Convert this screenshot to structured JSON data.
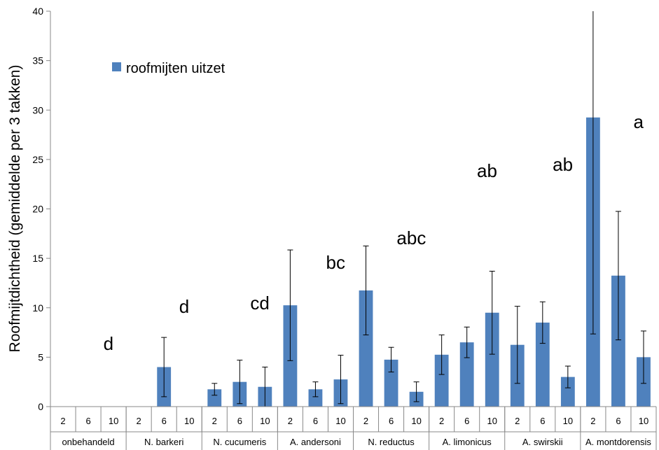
{
  "chart_data": {
    "type": "bar",
    "ylabel": "Roofmijtdichtheid (gemiddelde per 3 takken)",
    "ylim": [
      0,
      40
    ],
    "yticks": [
      "0",
      "5",
      "10",
      "15",
      "20",
      "25",
      "30",
      "35",
      "40"
    ],
    "legend": {
      "label": "roofmijten uitzet",
      "position": "top-left"
    },
    "color": "#4f81bd",
    "groups": [
      {
        "name": "onbehandeld",
        "significance": "d",
        "sub": [
          "2",
          "6",
          "10"
        ],
        "values": [
          0,
          0,
          0
        ],
        "err": [
          0,
          0,
          0
        ]
      },
      {
        "name": "N. barkeri",
        "significance": "d",
        "sub": [
          "2",
          "6",
          "10"
        ],
        "values": [
          0,
          4.0,
          0
        ],
        "err": [
          0,
          3.0,
          0
        ]
      },
      {
        "name": "N. cucumeris",
        "significance": "cd",
        "sub": [
          "2",
          "6",
          "10"
        ],
        "values": [
          1.75,
          2.5,
          2.0
        ],
        "err": [
          0.6,
          2.2,
          2.0
        ]
      },
      {
        "name": "A. andersoni",
        "significance": "bc",
        "sub": [
          "2",
          "6",
          "10"
        ],
        "values": [
          10.25,
          1.75,
          2.75
        ],
        "err": [
          5.6,
          0.75,
          2.45
        ]
      },
      {
        "name": "N. reductus",
        "significance": "abc",
        "sub": [
          "2",
          "6",
          "10"
        ],
        "values": [
          11.75,
          4.75,
          1.5
        ],
        "err": [
          4.5,
          1.25,
          1.0
        ]
      },
      {
        "name": "A. limonicus",
        "significance": "ab",
        "sub": [
          "2",
          "6",
          "10"
        ],
        "values": [
          5.25,
          6.5,
          9.5
        ],
        "err": [
          2.0,
          1.55,
          4.2
        ]
      },
      {
        "name": "A. swirskii",
        "significance": "ab",
        "sub": [
          "2",
          "6",
          "10"
        ],
        "values": [
          6.25,
          8.5,
          3.0
        ],
        "err": [
          3.9,
          2.1,
          1.1
        ]
      },
      {
        "name": "A. montdorensis",
        "significance": "a",
        "sub": [
          "2",
          "6",
          "10"
        ],
        "values": [
          29.25,
          13.25,
          5.0
        ],
        "err": [
          21.9,
          6.5,
          2.65
        ]
      }
    ]
  }
}
